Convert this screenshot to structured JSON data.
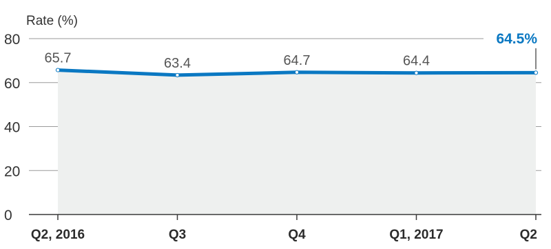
{
  "chart_data": {
    "type": "area",
    "title": "",
    "ylabel": "Rate (%)",
    "xlabel": "",
    "categories": [
      "Q2, 2016",
      "Q3",
      "Q4",
      "Q1, 2017",
      "Q2"
    ],
    "series": [
      {
        "values": [
          65.7,
          63.4,
          64.7,
          64.4,
          64.5
        ]
      }
    ],
    "data_labels": [
      "65.7",
      "63.4",
      "64.7",
      "64.4",
      "64.5%"
    ],
    "ylim": [
      0,
      80
    ],
    "yticks": [
      0,
      20,
      40,
      60,
      80
    ],
    "ytick_labels": [
      "0",
      "20",
      "40",
      "60",
      "80"
    ],
    "grid": true,
    "colors": {
      "line": "#0a78c2",
      "area": "#eef0ef",
      "grid": "#9a9a9a",
      "axis": "#3a3a3a",
      "highlight": "#0a78c2",
      "label": "#555555"
    }
  }
}
